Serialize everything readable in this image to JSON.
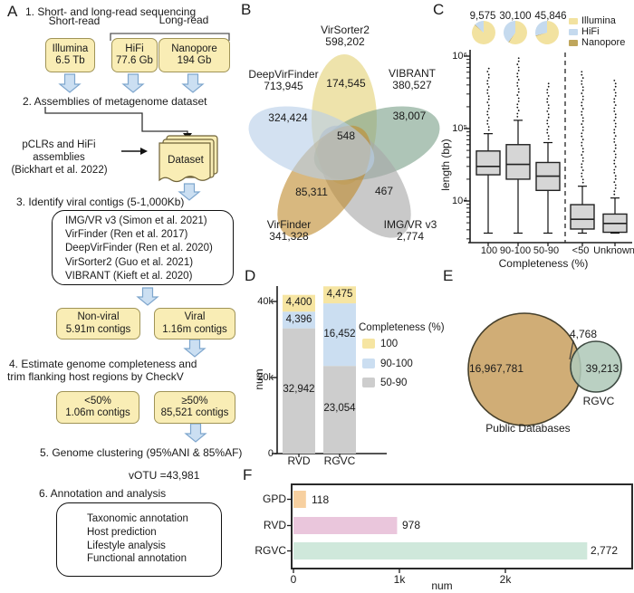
{
  "panel_letters": {
    "a": "A",
    "b": "B",
    "c": "C",
    "d": "D",
    "e": "E",
    "f": "F"
  },
  "panel_a": {
    "step1": "1. Short- and long-read sequencing",
    "short_read_label": "Short-read",
    "long_read_label": "Long-read",
    "illumina": {
      "name": "Illumina",
      "value": "6.5 Tb"
    },
    "hifi": {
      "name": "HiFi",
      "value": "77.6 Gb"
    },
    "nanopore": {
      "name": "Nanopore",
      "value": "194 Gb"
    },
    "step2": "2. Assemblies of metagenome dataset",
    "assembly_note": [
      "pCLRs and HiFi",
      "assemblies",
      "(Bickhart et al. 2022)"
    ],
    "dataset_label": "Dataset",
    "step3": "3. Identify viral contigs (5-1,000Kb)",
    "tools": [
      "IMG/VR v3 (Simon et al. 2021)",
      "VirFinder (Ren et al. 2017)",
      "DeepVirFinder (Ren et al. 2020)",
      "VirSorter2 (Guo et al. 2021)",
      "VIBRANT (Kieft  et al. 2020)"
    ],
    "nonviral": {
      "name": "Non-viral",
      "value": "5.91m contigs"
    },
    "viral": {
      "name": "Viral",
      "value": "1.16m contigs"
    },
    "step4": [
      "4. Estimate genome completeness and",
      "trim flanking host regions by CheckV"
    ],
    "lt50": {
      "name": "<50%",
      "value": "1.06m contigs"
    },
    "ge50": {
      "name": "≥50%",
      "value": "85,521 contigs"
    },
    "step5": "5. Genome clustering (95%ANI & 85%AF)",
    "votu": "vOTU =43,981",
    "step6": "6. Annotation and analysis",
    "annotations": [
      "Taxonomic annotation",
      "Host prediction",
      "Lifestyle analysis",
      "Functional annotation"
    ]
  },
  "chart_data": [
    {
      "id": "venn-b",
      "type": "venn",
      "panel": "B",
      "sets": [
        {
          "label": "VirSorter2",
          "total": "598,202",
          "unique": "174,545",
          "color": "#e3d277"
        },
        {
          "label": "DeepVirFinder",
          "total": "713,945",
          "unique": "324,424",
          "color": "#b8cfe8"
        },
        {
          "label": "VIBRANT",
          "total": "380,527",
          "unique": "38,007",
          "color": "#7da18a"
        },
        {
          "label": "VirFinder",
          "total": "341,328",
          "unique": "85,311",
          "color": "#c08c30"
        },
        {
          "label": "IMG/VR v3",
          "total": "2,774",
          "unique": "467",
          "color": "#a8a8a8"
        }
      ],
      "center_overlap": "548"
    },
    {
      "id": "boxplot-c",
      "type": "boxplot",
      "panel": "C",
      "ylabel": "length (bp)",
      "xlabel": "Completeness (%)",
      "yscale": "log",
      "ylim": [
        3000,
        1000000
      ],
      "ytick_labels": [
        "10⁶",
        "10⁵",
        "10⁴"
      ],
      "categories": [
        "100",
        "90-100",
        "50-90",
        "<50",
        "Unknown"
      ],
      "boxes": [
        {
          "category": "100",
          "whisker_low": 3600,
          "q1": 23000,
          "median": 30000,
          "q3": 49000,
          "whisker_high": 85000,
          "outlier_max": 700000
        },
        {
          "category": "90-100",
          "whisker_low": 3600,
          "q1": 20000,
          "median": 32000,
          "q3": 60000,
          "whisker_high": 130000,
          "outlier_max": 1000000
        },
        {
          "category": "50-90",
          "whisker_low": 3600,
          "q1": 14000,
          "median": 22000,
          "q3": 34000,
          "whisker_high": 64000,
          "outlier_max": 450000
        },
        {
          "category": "<50",
          "whisker_low": 3600,
          "q1": 4100,
          "median": 5600,
          "q3": 8900,
          "whisker_high": 16000,
          "outlier_max": 650000
        },
        {
          "category": "Unknown",
          "whisker_low": 3600,
          "q1": 3700,
          "median": 4900,
          "q3": 6600,
          "whisker_high": 11000,
          "outlier_max": 500000
        }
      ],
      "pies": [
        {
          "label": "9,575",
          "slices": [
            {
              "name": "Illumina",
              "fraction": 0.86
            },
            {
              "name": "Nanopore",
              "fraction": 0.01
            },
            {
              "name": "HiFi",
              "fraction": 0.13
            }
          ]
        },
        {
          "label": "30,100",
          "slices": [
            {
              "name": "Illumina",
              "fraction": 0.59
            },
            {
              "name": "Nanopore",
              "fraction": 0.01
            },
            {
              "name": "HiFi",
              "fraction": 0.4
            }
          ]
        },
        {
          "label": "45,846",
          "slices": [
            {
              "name": "Illumina",
              "fraction": 0.7
            },
            {
              "name": "Nanopore",
              "fraction": 0.01
            },
            {
              "name": "HiFi",
              "fraction": 0.29
            }
          ]
        }
      ],
      "legend": [
        {
          "name": "Illumina",
          "color": "#f2e2a0"
        },
        {
          "name": "HiFi",
          "color": "#c5daee"
        },
        {
          "name": "Nanopore",
          "color": "#bfa65c"
        }
      ],
      "box_fill": "#d6d6d6"
    },
    {
      "id": "stacked-bar-d",
      "type": "bar",
      "panel": "D",
      "stacked": true,
      "categories": [
        "RVD",
        "RGVC"
      ],
      "series": [
        {
          "name": "100",
          "color": "#f6e5a2",
          "values": [
            4400,
            4475
          ],
          "labels": [
            "4,400",
            "4,475"
          ]
        },
        {
          "name": "90-100",
          "color": "#cbdef1",
          "values": [
            4396,
            16452
          ],
          "labels": [
            "4,396",
            "16,452"
          ]
        },
        {
          "name": "50-90",
          "color": "#cdcdcd",
          "values": [
            32942,
            23054
          ],
          "labels": [
            "32,942",
            "23,054"
          ]
        }
      ],
      "ylabel": "num",
      "ylim": [
        0,
        44000
      ],
      "ytick_labels": [
        "0",
        "20k",
        "40k"
      ],
      "ytick_values": [
        0,
        20000,
        40000
      ],
      "legend_title": "Completeness (%)"
    },
    {
      "id": "venn-e",
      "type": "venn",
      "panel": "E",
      "sets": [
        {
          "label": "Public Databases",
          "value": 16967781,
          "display": "16,967,781",
          "color": "#d0ad76"
        },
        {
          "label": "RGVC",
          "value": 39213,
          "display": "39,213",
          "color": "#b0c9ba"
        }
      ],
      "overlap": {
        "value": 4768,
        "display": "4,768"
      }
    },
    {
      "id": "hbar-f",
      "type": "bar",
      "panel": "F",
      "orientation": "horizontal",
      "categories": [
        "GPD",
        "RVD",
        "RGVC"
      ],
      "values": [
        118,
        978,
        2772
      ],
      "value_labels": [
        "118",
        "978",
        "2,772"
      ],
      "colors": [
        "#f7d0a0",
        "#eac6dc",
        "#cfe8db"
      ],
      "xlabel": "num",
      "xlim": [
        0,
        3200
      ],
      "xtick_labels": [
        "0",
        "1k",
        "2k"
      ],
      "xtick_values": [
        0,
        1000,
        2000
      ]
    }
  ]
}
